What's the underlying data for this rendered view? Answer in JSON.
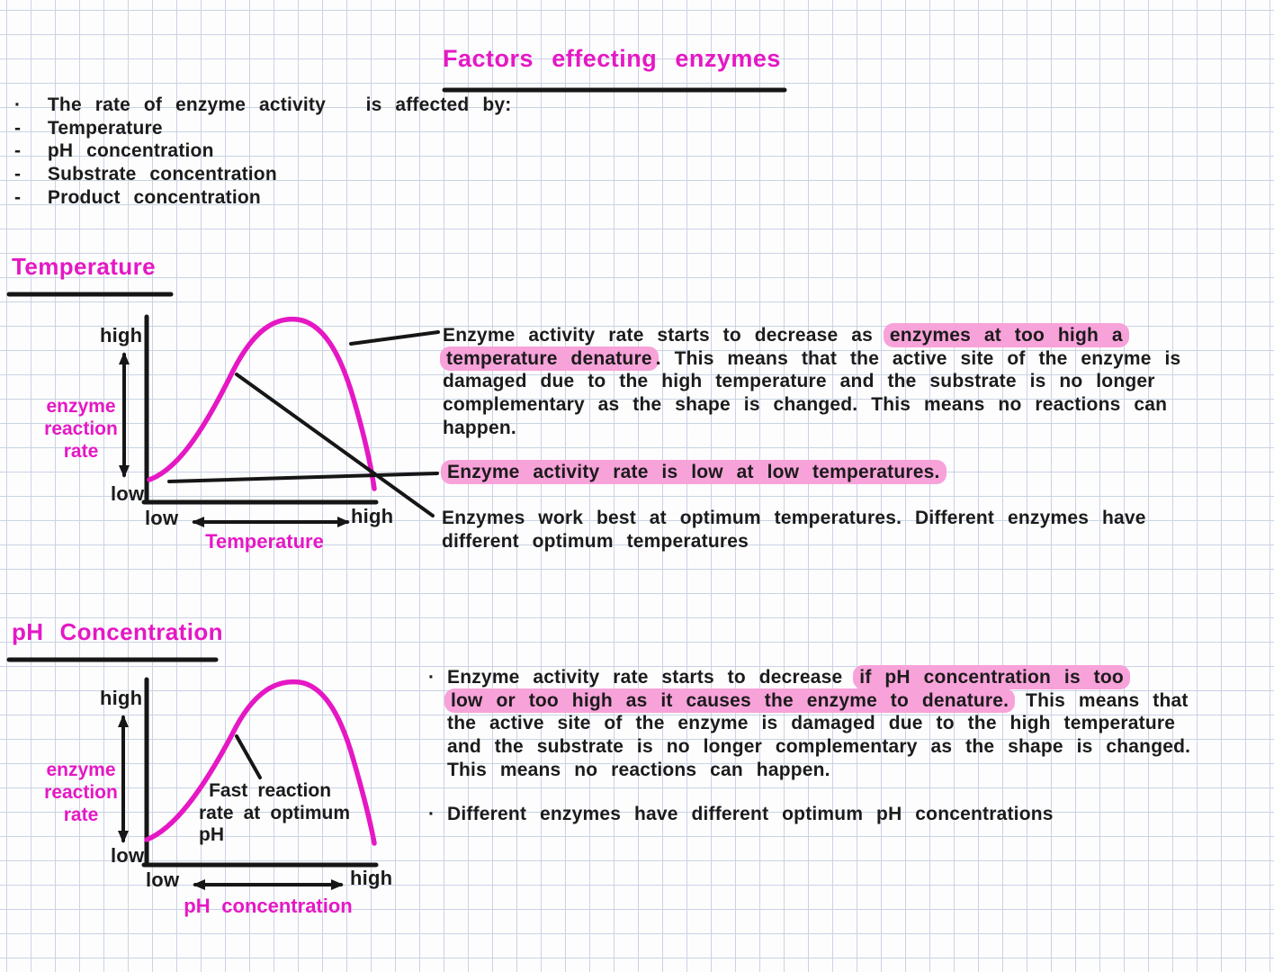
{
  "colors": {
    "ink": "#1b1b1b",
    "pink": "#e518c4",
    "highlight": "#f8a2da",
    "grid_line": "#cad3e3",
    "paper": "#fdfdfe"
  },
  "page": {
    "title": "Factors effecting enzymes"
  },
  "intro": {
    "lead": "·  The rate of enzyme activity   is affected by:",
    "items": [
      "-  Temperature",
      "-  pH concentration",
      "-  Substrate concentration",
      "-  Product concentration"
    ]
  },
  "glyphs": {
    "bullet": "·"
  },
  "temperature": {
    "heading": "Temperature",
    "graph": {
      "y_high": "high",
      "y_low": "low",
      "y_label_lines": "enzyme\nreaction\nrate",
      "x_low": "low",
      "x_high": "high",
      "x_label": "Temperature"
    },
    "notes": {
      "para_denature": [
        [
          {
            "t": "Enzyme activity rate starts to decrease as "
          },
          {
            "t": "enzymes at too high a",
            "hl": true
          }
        ],
        [
          {
            "t": "temperature denature",
            "hl": true
          },
          {
            "t": ". This means that the active site of the enzyme is"
          }
        ],
        [
          {
            "t": "damaged due to the high temperature and the substrate is no longer"
          }
        ],
        [
          {
            "t": "complementary as the shape is changed. This means no reactions can"
          }
        ],
        [
          {
            "t": "happen."
          }
        ]
      ],
      "callout_low": [
        [
          {
            "t": "Enzyme activity rate is low at low temperatures.",
            "hl": true
          }
        ]
      ],
      "para_optimum": [
        [
          {
            "t": "Enzymes work best at optimum temperatures. Different enzymes have"
          }
        ],
        [
          {
            "t": "different optimum temperatures"
          }
        ]
      ]
    }
  },
  "ph": {
    "heading": "pH Concentration",
    "graph": {
      "y_high": "high",
      "y_low": "low",
      "y_label_lines": "enzyme\nreaction\nrate",
      "x_low": "low",
      "x_high": "high",
      "x_label": "pH concentration",
      "curve_note_lines": " Fast reaction\nrate at optimum\npH"
    },
    "notes": {
      "para_denature": [
        [
          {
            "t": "Enzyme activity rate starts to decrease "
          },
          {
            "t": "if pH concentration is too",
            "hl": true
          }
        ],
        [
          {
            "t": "low or too high as it causes the enzyme to denature.",
            "hl": true
          },
          {
            "t": " This means that"
          }
        ],
        [
          {
            "t": "the active site of the enzyme is damaged due to the high temperature"
          }
        ],
        [
          {
            "t": "and the substrate is no longer complementary as the shape is changed."
          }
        ],
        [
          {
            "t": "This means no reactions can happen."
          }
        ]
      ],
      "bullet_different": [
        [
          {
            "t": "Different enzymes have different optimum pH concentrations"
          }
        ]
      ]
    }
  },
  "chart_data": [
    {
      "type": "line",
      "title": "Effect of temperature on enzyme reaction rate (sketch)",
      "xlabel": "Temperature",
      "ylabel": "enzyme reaction rate",
      "x_tick_labels": [
        "low",
        "high"
      ],
      "y_tick_labels": [
        "low",
        "high"
      ],
      "grid": false,
      "series": [
        {
          "name": "enzyme reaction rate",
          "shape": "asymmetric bell curve peaking at optimum temperature",
          "points_normalized_xy": [
            [
              0.0,
              0.1
            ],
            [
              0.2,
              0.25
            ],
            [
              0.38,
              0.62
            ],
            [
              0.55,
              0.98
            ],
            [
              0.65,
              1.0
            ],
            [
              0.78,
              0.75
            ],
            [
              0.9,
              0.3
            ],
            [
              1.0,
              0.06
            ]
          ]
        }
      ],
      "annotations": [
        "Enzyme activity rate starts to decrease as enzymes at too high a temperature denature (points to descending limb)",
        "Enzyme activity rate is low at low temperatures (points to curve start)",
        "Enzymes work best at optimum temperatures (points to rising limb)"
      ]
    },
    {
      "type": "line",
      "title": "Effect of pH concentration on enzyme reaction rate (sketch)",
      "xlabel": "pH concentration",
      "ylabel": "enzyme reaction rate",
      "x_tick_labels": [
        "low",
        "high"
      ],
      "y_tick_labels": [
        "low",
        "high"
      ],
      "grid": false,
      "series": [
        {
          "name": "enzyme reaction rate",
          "shape": "asymmetric bell curve peaking at optimum pH",
          "points_normalized_xy": [
            [
              0.0,
              0.12
            ],
            [
              0.2,
              0.27
            ],
            [
              0.39,
              0.65
            ],
            [
              0.55,
              0.97
            ],
            [
              0.67,
              1.0
            ],
            [
              0.8,
              0.72
            ],
            [
              0.92,
              0.28
            ],
            [
              1.0,
              0.05
            ]
          ]
        }
      ],
      "annotations": [
        "Fast reaction rate at optimum pH (points to rising limb)"
      ]
    }
  ]
}
